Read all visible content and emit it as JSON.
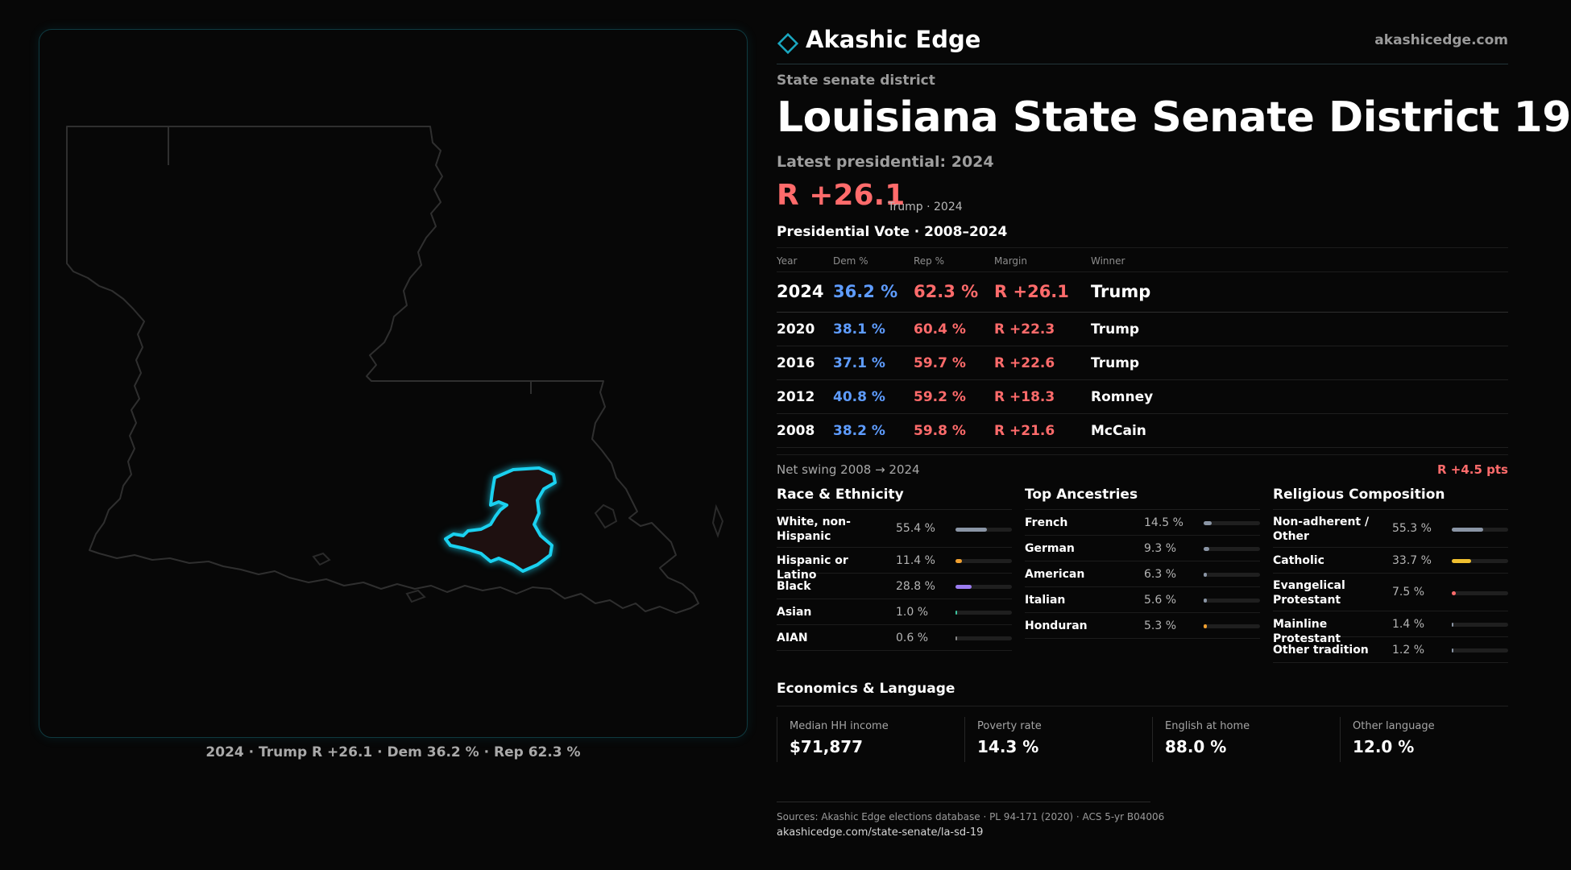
{
  "brand": {
    "name": "Akashic Edge",
    "url": "akashicedge.com",
    "logo_icon": "diamond-logo-icon",
    "accent_color": "#1aa7c0"
  },
  "kicker": "State senate district",
  "title": "Louisiana State Senate District 19",
  "latest": "Latest presidential: 2024",
  "headline": {
    "margin": "R +26.1",
    "sub": "Trump · 2024",
    "color": "#ff6b6b"
  },
  "vote_table": {
    "title": "Presidential Vote · 2008–2024",
    "headers": {
      "year": "Year",
      "dem": "Dem %",
      "rep": "Rep %",
      "margin": "Margin",
      "winner": "Winner"
    },
    "rows": [
      {
        "year": "2024",
        "dem": "36.2 %",
        "rep": "62.3 %",
        "margin": "R +26.1",
        "winner": "Trump"
      },
      {
        "year": "2020",
        "dem": "38.1 %",
        "rep": "60.4 %",
        "margin": "R +22.3",
        "winner": "Trump"
      },
      {
        "year": "2016",
        "dem": "37.1 %",
        "rep": "59.7 %",
        "margin": "R +22.6",
        "winner": "Trump"
      },
      {
        "year": "2012",
        "dem": "40.8 %",
        "rep": "59.2 %",
        "margin": "R +18.3",
        "winner": "Romney"
      },
      {
        "year": "2008",
        "dem": "38.2 %",
        "rep": "59.8 %",
        "margin": "R +21.6",
        "winner": "McCain"
      }
    ],
    "dem_color": "#5e9cff",
    "rep_color": "#ff6b6b"
  },
  "swing": {
    "label": "Net swing 2008 → 2024",
    "value": "R +4.5 pts"
  },
  "race": {
    "title": "Race & Ethnicity",
    "items": [
      {
        "label": "White, non-Hispanic",
        "pct": "55.4 %",
        "value": 55.4,
        "color": "#8a95a5"
      },
      {
        "label": "Hispanic or Latino",
        "pct": "11.4 %",
        "value": 11.4,
        "color": "#f0a030"
      },
      {
        "label": "Black",
        "pct": "28.8 %",
        "value": 28.8,
        "color": "#9b7cf0"
      },
      {
        "label": "Asian",
        "pct": "1.0 %",
        "value": 1.0,
        "color": "#3cc4a0"
      },
      {
        "label": "AIAN",
        "pct": "0.6 %",
        "value": 0.6,
        "color": "#888888"
      }
    ]
  },
  "ancestry": {
    "title": "Top Ancestries",
    "items": [
      {
        "label": "French",
        "pct": "14.5 %",
        "value": 14.5,
        "color": "#8a95a5"
      },
      {
        "label": "German",
        "pct": "9.3 %",
        "value": 9.3,
        "color": "#8a95a5"
      },
      {
        "label": "American",
        "pct": "6.3 %",
        "value": 6.3,
        "color": "#8a95a5"
      },
      {
        "label": "Italian",
        "pct": "5.6 %",
        "value": 5.6,
        "color": "#8a95a5"
      },
      {
        "label": "Honduran",
        "pct": "5.3 %",
        "value": 5.3,
        "color": "#f0a030"
      }
    ]
  },
  "religion": {
    "title": "Religious Composition",
    "items": [
      {
        "label": "Non-adherent / Other",
        "pct": "55.3 %",
        "value": 55.3,
        "color": "#8a95a5"
      },
      {
        "label": "Catholic",
        "pct": "33.7 %",
        "value": 33.7,
        "color": "#f0c030"
      },
      {
        "label": "Evangelical Protestant",
        "pct": "7.5 %",
        "value": 7.5,
        "color": "#ff6b6b"
      },
      {
        "label": "Mainline Protestant",
        "pct": "1.4 %",
        "value": 1.4,
        "color": "#8a95a5"
      },
      {
        "label": "Other tradition",
        "pct": "1.2 %",
        "value": 1.2,
        "color": "#8a95a5"
      }
    ]
  },
  "economics": {
    "title": "Economics & Language",
    "items": [
      {
        "label": "Median HH income",
        "value": "$71,877"
      },
      {
        "label": "Poverty rate",
        "value": "14.3 %"
      },
      {
        "label": "English at home",
        "value": "88.0 %"
      },
      {
        "label": "Other language",
        "value": "12.0 %"
      }
    ]
  },
  "map": {
    "caption": "2024 · Trump R +26.1 · Dem 36.2 % · Rep 62.3 %",
    "outline_color": "#2f2f2f",
    "highlight_color": "#1ad1f0"
  },
  "sources": {
    "text": "Sources: Akashic Edge elections database · PL 94-171 (2020) · ACS 5-yr B04006",
    "url": "akashicedge.com/state-senate/la-sd-19"
  }
}
